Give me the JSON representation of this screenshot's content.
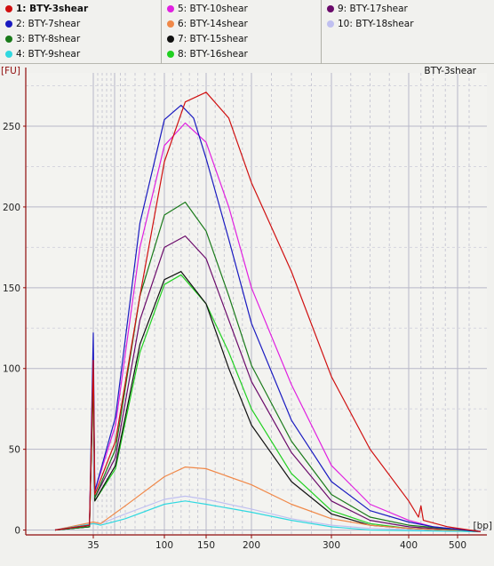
{
  "legend": {
    "items": [
      {
        "label": "1: BTY-3shear",
        "color": "#d01010",
        "selected": true
      },
      {
        "label": "2: BTY-7shear",
        "color": "#1a1ac0",
        "selected": false
      },
      {
        "label": "3: BTY-8shear",
        "color": "#1a7a1a",
        "selected": false
      },
      {
        "label": "4: BTY-9shear",
        "color": "#30d8e0",
        "selected": false
      },
      {
        "label": "5: BTY-10shear",
        "color": "#e020e0",
        "selected": false
      },
      {
        "label": "6: BTY-14shear",
        "color": "#f08848",
        "selected": false
      },
      {
        "label": "7: BTY-15shear",
        "color": "#111111",
        "selected": false
      },
      {
        "label": "8: BTY-16shear",
        "color": "#20d020",
        "selected": false
      },
      {
        "label": "9: BTY-17shear",
        "color": "#6a0a6a",
        "selected": false
      },
      {
        "label": "10: BTY-18shear",
        "color": "#c0c0f0",
        "selected": false
      }
    ]
  },
  "chart_data": {
    "type": "line",
    "title": "BTY-3shear",
    "ylabel": "[FU]",
    "xlabel": "[bp]",
    "ylim": [
      -3,
      283
    ],
    "yticks": [
      "0",
      "50",
      "100",
      "150",
      "200",
      "250"
    ],
    "xticks": [
      "35",
      "100",
      "150",
      "200",
      "300",
      "400",
      "500"
    ],
    "x_scale": "log-like electrophoresis size axis",
    "grid": true,
    "marker_peak": {
      "x": "35",
      "y": 122
    },
    "series": [
      {
        "name": "1: BTY-3shear",
        "color": "#d01010",
        "points": [
          [
            25,
            0
          ],
          [
            34,
            3
          ],
          [
            35,
            105
          ],
          [
            36,
            22
          ],
          [
            50,
            55
          ],
          [
            75,
            145
          ],
          [
            100,
            228
          ],
          [
            125,
            265
          ],
          [
            150,
            271
          ],
          [
            175,
            255
          ],
          [
            200,
            215
          ],
          [
            250,
            160
          ],
          [
            300,
            95
          ],
          [
            350,
            50
          ],
          [
            400,
            18
          ],
          [
            420,
            8
          ],
          [
            425,
            15
          ],
          [
            430,
            6
          ],
          [
            480,
            2
          ],
          [
            550,
            -1
          ]
        ]
      },
      {
        "name": "2: BTY-7shear",
        "color": "#1a1ac0",
        "points": [
          [
            25,
            0
          ],
          [
            34,
            3
          ],
          [
            35,
            122
          ],
          [
            36,
            24
          ],
          [
            50,
            70
          ],
          [
            75,
            190
          ],
          [
            100,
            254
          ],
          [
            120,
            263
          ],
          [
            135,
            255
          ],
          [
            150,
            230
          ],
          [
            175,
            180
          ],
          [
            200,
            128
          ],
          [
            250,
            68
          ],
          [
            300,
            30
          ],
          [
            350,
            12
          ],
          [
            400,
            5
          ],
          [
            450,
            2
          ],
          [
            550,
            -1
          ]
        ]
      },
      {
        "name": "3: BTY-8shear",
        "color": "#1a7a1a",
        "points": [
          [
            25,
            0
          ],
          [
            34,
            2
          ],
          [
            35,
            100
          ],
          [
            36,
            20
          ],
          [
            50,
            50
          ],
          [
            75,
            145
          ],
          [
            100,
            195
          ],
          [
            125,
            203
          ],
          [
            150,
            185
          ],
          [
            175,
            145
          ],
          [
            200,
            102
          ],
          [
            250,
            55
          ],
          [
            300,
            22
          ],
          [
            350,
            8
          ],
          [
            400,
            3
          ],
          [
            550,
            -1
          ]
        ]
      },
      {
        "name": "4: BTY-9shear",
        "color": "#30d8e0",
        "points": [
          [
            25,
            0
          ],
          [
            35,
            4
          ],
          [
            40,
            3
          ],
          [
            60,
            7
          ],
          [
            100,
            16
          ],
          [
            125,
            18
          ],
          [
            150,
            16
          ],
          [
            200,
            11
          ],
          [
            250,
            6
          ],
          [
            300,
            2
          ],
          [
            350,
            0
          ],
          [
            550,
            -1
          ]
        ]
      },
      {
        "name": "5: BTY-10shear",
        "color": "#e020e0",
        "points": [
          [
            25,
            0
          ],
          [
            34,
            3
          ],
          [
            35,
            110
          ],
          [
            36,
            24
          ],
          [
            50,
            65
          ],
          [
            75,
            175
          ],
          [
            100,
            238
          ],
          [
            125,
            252
          ],
          [
            150,
            240
          ],
          [
            175,
            200
          ],
          [
            200,
            150
          ],
          [
            250,
            90
          ],
          [
            300,
            40
          ],
          [
            350,
            16
          ],
          [
            400,
            6
          ],
          [
            450,
            2
          ],
          [
            550,
            -1
          ]
        ]
      },
      {
        "name": "6: BTY-14shear",
        "color": "#f08848",
        "points": [
          [
            25,
            0
          ],
          [
            35,
            5
          ],
          [
            40,
            4
          ],
          [
            60,
            15
          ],
          [
            100,
            33
          ],
          [
            125,
            39
          ],
          [
            150,
            38
          ],
          [
            200,
            28
          ],
          [
            250,
            16
          ],
          [
            300,
            7
          ],
          [
            350,
            3
          ],
          [
            400,
            1
          ],
          [
            550,
            -1
          ]
        ]
      },
      {
        "name": "7: BTY-15shear",
        "color": "#111111",
        "points": [
          [
            25,
            0
          ],
          [
            34,
            2
          ],
          [
            35,
            95
          ],
          [
            36,
            18
          ],
          [
            50,
            40
          ],
          [
            75,
            115
          ],
          [
            100,
            155
          ],
          [
            120,
            160
          ],
          [
            150,
            140
          ],
          [
            175,
            100
          ],
          [
            200,
            65
          ],
          [
            250,
            30
          ],
          [
            300,
            10
          ],
          [
            350,
            3
          ],
          [
            400,
            1
          ],
          [
            550,
            -1
          ]
        ]
      },
      {
        "name": "8: BTY-16shear",
        "color": "#20d020",
        "points": [
          [
            25,
            0
          ],
          [
            34,
            2
          ],
          [
            35,
            92
          ],
          [
            36,
            18
          ],
          [
            50,
            38
          ],
          [
            75,
            110
          ],
          [
            100,
            152
          ],
          [
            120,
            158
          ],
          [
            150,
            140
          ],
          [
            175,
            110
          ],
          [
            200,
            75
          ],
          [
            250,
            35
          ],
          [
            300,
            12
          ],
          [
            350,
            4
          ],
          [
            400,
            1
          ],
          [
            550,
            -1
          ]
        ]
      },
      {
        "name": "9: BTY-17shear",
        "color": "#6a0a6a",
        "points": [
          [
            25,
            0
          ],
          [
            34,
            2
          ],
          [
            35,
            98
          ],
          [
            36,
            20
          ],
          [
            50,
            45
          ],
          [
            75,
            130
          ],
          [
            100,
            175
          ],
          [
            125,
            182
          ],
          [
            150,
            168
          ],
          [
            175,
            130
          ],
          [
            200,
            92
          ],
          [
            250,
            48
          ],
          [
            300,
            18
          ],
          [
            350,
            6
          ],
          [
            400,
            2
          ],
          [
            550,
            -1
          ]
        ]
      },
      {
        "name": "10: BTY-18shear",
        "color": "#c0c0f0",
        "points": [
          [
            25,
            0
          ],
          [
            35,
            4
          ],
          [
            40,
            4
          ],
          [
            60,
            10
          ],
          [
            100,
            19
          ],
          [
            125,
            21
          ],
          [
            150,
            19
          ],
          [
            200,
            13
          ],
          [
            250,
            7
          ],
          [
            300,
            3
          ],
          [
            350,
            1
          ],
          [
            550,
            -1
          ]
        ]
      }
    ]
  }
}
